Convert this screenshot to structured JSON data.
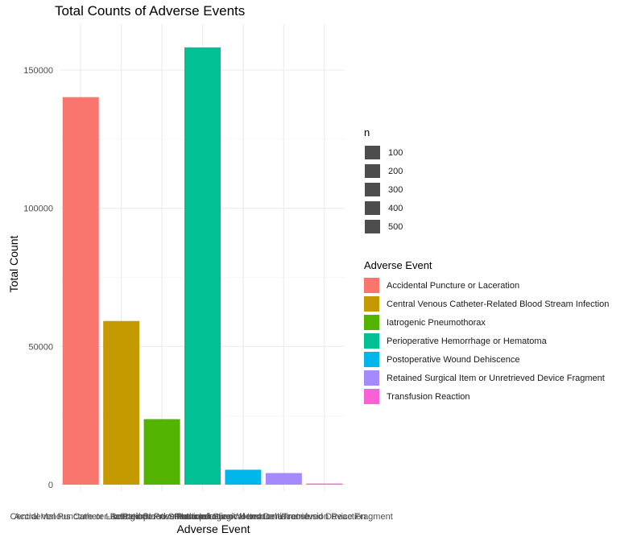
{
  "chart_data": {
    "type": "bar",
    "title": "Total Counts of Adverse Events",
    "xlabel": "Adverse Event",
    "ylabel": "Total Count",
    "ylim": [
      0,
      165000
    ],
    "yticks": [
      0,
      50000,
      100000,
      150000
    ],
    "ytick_labels": [
      "0",
      "50000",
      "100000",
      "150000"
    ],
    "grid": true,
    "categories": [
      "Accidental Puncture or Laceration",
      "Central Venous Catheter-Related Blood Stream Infection",
      "Iatrogenic Pneumothorax",
      "Perioperative Hemorrhage or Hematoma",
      "Postoperative Wound Dehiscence",
      "Retained Surgical Item or Unretrieved Device Fragment",
      "Transfusion Reaction"
    ],
    "values": [
      140200,
      59200,
      23700,
      158200,
      5400,
      4200,
      400
    ],
    "colors": [
      "#F8766D",
      "#C49A00",
      "#53B400",
      "#00C094",
      "#00B6EB",
      "#A58AFF",
      "#FB61D7"
    ],
    "legend_placement": "right"
  },
  "legend_n": {
    "title": "n",
    "items": [
      "100",
      "200",
      "300",
      "400",
      "500"
    ],
    "swatch_color": "#4d4d4d"
  },
  "legend_event": {
    "title": "Adverse Event"
  }
}
